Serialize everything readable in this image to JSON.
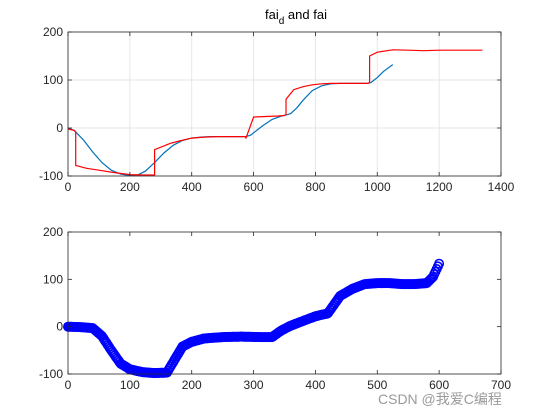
{
  "chart_data": [
    {
      "type": "line",
      "title": "fai",
      "title_subscript": "d",
      "title_suffix": " and fai",
      "xlim": [
        0,
        1400
      ],
      "ylim": [
        -100,
        200
      ],
      "xticks": [
        "0",
        "200",
        "400",
        "600",
        "800",
        "1000",
        "1200",
        "1400"
      ],
      "yticks": [
        "-100",
        "0",
        "100",
        "200"
      ],
      "grid": true,
      "series": [
        {
          "color": "#0072BD",
          "x": [
            0,
            20,
            50,
            80,
            110,
            140,
            170,
            200,
            225,
            250,
            280,
            310,
            340,
            370,
            400,
            430,
            460,
            490,
            520,
            550,
            575,
            590,
            610,
            630,
            660,
            690,
            710,
            720,
            740,
            760,
            790,
            820,
            850,
            880,
            910,
            940,
            970,
            980,
            1000,
            1020,
            1050
          ],
          "y": [
            0,
            -5,
            -25,
            -50,
            -72,
            -88,
            -96,
            -99,
            -98,
            -90,
            -72,
            -52,
            -36,
            -26,
            -21,
            -19,
            -18,
            -18,
            -18,
            -18,
            -18,
            -15,
            -5,
            5,
            18,
            25,
            28,
            30,
            42,
            58,
            78,
            88,
            92,
            93,
            93,
            93,
            93,
            95,
            105,
            118,
            132
          ]
        },
        {
          "color": "#FF0000",
          "x": [
            0,
            20,
            25,
            25,
            60,
            100,
            150,
            200,
            240,
            270,
            280,
            280,
            300,
            330,
            360,
            400,
            440,
            480,
            520,
            560,
            575,
            575,
            600,
            640,
            680,
            700,
            705,
            705,
            730,
            760,
            790,
            820,
            850,
            880,
            910,
            940,
            970,
            975,
            975,
            1000,
            1050,
            1100,
            1150,
            1200,
            1250,
            1300,
            1340
          ],
          "y": [
            -2,
            -5,
            -8,
            -78,
            -84,
            -88,
            -93,
            -97,
            -98,
            -98,
            -98,
            -45,
            -40,
            -32,
            -27,
            -21,
            -19,
            -18,
            -18,
            -18,
            -18,
            -22,
            23,
            24,
            25,
            26,
            28,
            60,
            80,
            86,
            90,
            92,
            93,
            93,
            93,
            93,
            93,
            95,
            150,
            158,
            163,
            162,
            161,
            162,
            162,
            162,
            162
          ]
        }
      ]
    },
    {
      "type": "scatter",
      "title": "",
      "xlim": [
        0,
        700
      ],
      "ylim": [
        -100,
        200
      ],
      "xticks": [
        "0",
        "100",
        "200",
        "300",
        "400",
        "500",
        "600",
        "700"
      ],
      "yticks": [
        "-100",
        "0",
        "100",
        "200"
      ],
      "grid": false,
      "marker": "o",
      "color": "#0000FF",
      "x": [
        0,
        20,
        40,
        55,
        70,
        85,
        100,
        120,
        140,
        160,
        170,
        185,
        200,
        220,
        250,
        280,
        310,
        330,
        345,
        360,
        380,
        400,
        420,
        440,
        460,
        480,
        500,
        520,
        540,
        560,
        580,
        590,
        600
      ],
      "y": [
        0,
        -1,
        -3,
        -20,
        -50,
        -78,
        -90,
        -96,
        -98,
        -97,
        -75,
        -42,
        -32,
        -25,
        -22,
        -21,
        -22,
        -22,
        -8,
        2,
        12,
        22,
        28,
        65,
        80,
        90,
        92,
        92,
        90,
        90,
        92,
        105,
        133
      ]
    }
  ],
  "watermark": "CSDN @我爱C编程"
}
